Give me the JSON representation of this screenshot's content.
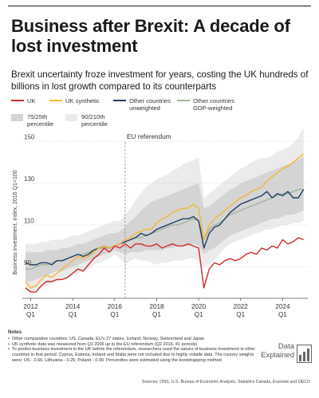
{
  "title": "Business after Brexit: A decade of lost investment",
  "subtitle": "Brexit uncertainty froze investment for years, costing the UK hundreds of billions in lost growth compared to its counterparts",
  "legend": {
    "uk": "UK",
    "synthetic": "UK synthetic",
    "unweighted_1": "Other countries",
    "unweighted_2": "unweighted",
    "gdp_1": "Other countries",
    "gdp_2": "GDP-weighted",
    "band75_1": "75/25th",
    "band75_2": "percentile",
    "band90_1": "90/210th",
    "band90_2": "percentile"
  },
  "colors": {
    "uk": "#d12a2a",
    "synthetic": "#f5b731",
    "unweighted": "#1f3d66",
    "gdp": "#a3b49e",
    "band75": "#d4d4d4",
    "band90": "#ebebeb",
    "text": "#1a1a1a"
  },
  "notes": {
    "title": "Notes",
    "lines": [
      "Other comparative countries: US, Canada, EU's 27 states, Iceland, Norway, Switzerland and Japan",
      "UK synthetic data was measured from Q1 2006 up to the EU referendum (Q2 2016, 41 periods)",
      "To predict business investment in the UK before the referendum, researchers used the values of business investment in other countries in that period. Cyprus, Estonia, Ireland and Malta were not included due to highly volatile data. The country weights were: US - 0.66; Lithuania - 0.25; Poland - 0.09. Percentiles were estimated using the bootstrapping method"
    ]
  },
  "sources": "Sources: ONS, U.S. Bureau of Economic Analysis, Statistics Canada, Eurostat and OECD",
  "logo": {
    "line1": "Data",
    "line2": "Explained"
  },
  "chart_data": {
    "type": "line",
    "ylabel": "Business investment, index, 2016 Q1=100",
    "ylim": [
      75,
      155
    ],
    "yticks": [
      90,
      110,
      130,
      150
    ],
    "xlim": [
      2011.6,
      2025.2
    ],
    "xticks": [
      {
        "year": 2012,
        "label": "2012",
        "sub": "Q1"
      },
      {
        "year": 2014,
        "label": "2014",
        "sub": "Q1"
      },
      {
        "year": 2016,
        "label": "2016",
        "sub": "Q1"
      },
      {
        "year": 2018,
        "label": "2018",
        "sub": "Q1"
      },
      {
        "year": 2020,
        "label": "2020",
        "sub": "Q1"
      },
      {
        "year": 2022,
        "label": "2022",
        "sub": "Q1"
      },
      {
        "year": 2024,
        "label": "2024",
        "sub": "Q1"
      }
    ],
    "annotation": {
      "label": "EU referendum",
      "year": 2016.5
    },
    "x": [
      2011.75,
      2012.0,
      2012.25,
      2012.5,
      2012.75,
      2013.0,
      2013.25,
      2013.5,
      2013.75,
      2014.0,
      2014.25,
      2014.5,
      2014.75,
      2015.0,
      2015.25,
      2015.5,
      2015.75,
      2016.0,
      2016.25,
      2016.5,
      2016.75,
      2017.0,
      2017.25,
      2017.5,
      2017.75,
      2018.0,
      2018.25,
      2018.5,
      2018.75,
      2019.0,
      2019.25,
      2019.5,
      2019.75,
      2020.0,
      2020.25,
      2020.5,
      2020.75,
      2021.0,
      2021.25,
      2021.5,
      2021.75,
      2022.0,
      2022.25,
      2022.5,
      2022.75,
      2023.0,
      2023.25,
      2023.5,
      2023.75,
      2024.0,
      2024.25,
      2024.5,
      2024.75,
      2025.0
    ],
    "series": [
      {
        "name": "UK",
        "key": "uk",
        "values": [
          80,
          78,
          78,
          81,
          83,
          83,
          84,
          84,
          85,
          87,
          89,
          88,
          91,
          94,
          96,
          99,
          97,
          100,
          99,
          101,
          99,
          101,
          101,
          100,
          100,
          101,
          99,
          100,
          101,
          100,
          100,
          101,
          100,
          99,
          80,
          89,
          92,
          91,
          93,
          94,
          93,
          94,
          96,
          97,
          96,
          99,
          98,
          100,
          99,
          103,
          101,
          102,
          104,
          103
        ]
      },
      {
        "name": "UK synthetic",
        "key": "synthetic",
        "values": [
          83,
          80,
          81,
          84,
          86,
          85,
          87,
          89,
          91,
          93,
          95,
          94,
          95,
          97,
          99,
          100,
          99,
          100,
          101,
          103,
          104,
          106,
          107,
          108,
          108,
          111,
          113,
          114,
          116,
          117,
          118,
          118,
          120,
          118,
          103,
          110,
          113,
          115,
          117,
          119,
          121,
          123,
          124,
          126,
          127,
          128,
          131,
          133,
          135,
          137,
          138,
          140,
          142,
          144
        ]
      },
      {
        "name": "Other countries unweighted",
        "key": "unweighted",
        "values": [
          92,
          91,
          91,
          92,
          92,
          91,
          93,
          93,
          94,
          95,
          96,
          95,
          96,
          98,
          99,
          100,
          99,
          100,
          101,
          102,
          103,
          104,
          106,
          105,
          106,
          108,
          109,
          110,
          111,
          112,
          113,
          113,
          114,
          112,
          99,
          106,
          109,
          110,
          113,
          116,
          118,
          120,
          121,
          122,
          123,
          124,
          126,
          123,
          125,
          124,
          126,
          123,
          123,
          127
        ]
      },
      {
        "name": "Other countries GDP-weighted",
        "key": "gdp",
        "values": [
          89,
          89,
          90,
          91,
          91,
          92,
          93,
          93,
          94,
          95,
          96,
          96,
          97,
          98,
          99,
          99,
          99,
          100,
          101,
          102,
          103,
          104,
          104,
          105,
          106,
          107,
          108,
          109,
          110,
          110,
          111,
          112,
          113,
          112,
          103,
          108,
          110,
          111,
          113,
          115,
          116,
          117,
          118,
          119,
          120,
          121,
          122,
          123,
          124,
          125,
          125,
          126,
          127,
          127
        ]
      }
    ],
    "bands": [
      {
        "name": "90/210th percentile",
        "key": "band90",
        "low": [
          79,
          78,
          79,
          80,
          81,
          82,
          83,
          84,
          85,
          86,
          87,
          88,
          89,
          91,
          92,
          93,
          94,
          96,
          94,
          91,
          93,
          94,
          93,
          93,
          92,
          91,
          92,
          92,
          93,
          93,
          93,
          94,
          94,
          93,
          90,
          91,
          93,
          96,
          99,
          101,
          102,
          103,
          104,
          105,
          106,
          107,
          108,
          108,
          109,
          110,
          110,
          111,
          111,
          112
        ],
        "high": [
          101,
          101,
          101,
          102,
          102,
          103,
          103,
          103,
          104,
          105,
          105,
          106,
          107,
          108,
          109,
          110,
          111,
          112,
          112,
          115,
          118,
          122,
          125,
          128,
          130,
          132,
          133,
          134,
          136,
          137,
          139,
          140,
          141,
          142,
          123,
          125,
          127,
          129,
          131,
          133,
          135,
          137,
          138,
          140,
          141,
          142,
          142,
          143,
          145,
          146,
          147,
          149,
          152,
          157
        ]
      },
      {
        "name": "75/25th percentile",
        "key": "band75",
        "low": [
          83,
          83,
          84,
          85,
          86,
          87,
          88,
          88,
          89,
          90,
          91,
          92,
          93,
          94,
          95,
          96,
          97,
          98,
          97,
          96,
          97,
          97,
          97,
          98,
          98,
          98,
          98,
          99,
          99,
          100,
          100,
          100,
          101,
          100,
          96,
          98,
          99,
          101,
          103,
          105,
          106,
          107,
          108,
          109,
          110,
          111,
          112,
          113,
          113,
          114,
          115,
          115,
          116,
          117
        ],
        "high": [
          97,
          97,
          97,
          97,
          98,
          98,
          98,
          99,
          99,
          100,
          101,
          101,
          102,
          103,
          104,
          105,
          106,
          106,
          107,
          109,
          112,
          114,
          117,
          119,
          121,
          122,
          123,
          124,
          125,
          126,
          127,
          128,
          129,
          130,
          118,
          119,
          121,
          123,
          125,
          127,
          128,
          130,
          131,
          132,
          133,
          134,
          135,
          136,
          137,
          138,
          139,
          140,
          141,
          143
        ]
      }
    ],
    "grid": "horizontal",
    "legend_position": "top"
  }
}
